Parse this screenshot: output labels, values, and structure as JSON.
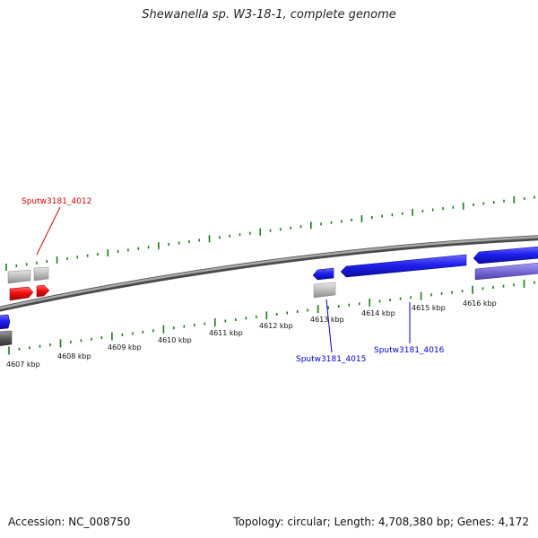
{
  "title": "Shewanella sp. W3-18-1, complete genome",
  "footer": {
    "accession": "Accession: NC_008750",
    "summary": "Topology: circular; Length: 4,708,380 bp; Genes: 4,172"
  },
  "scale": {
    "unit": "kbp",
    "labels": [
      "4607 kbp",
      "4608 kbp",
      "4609 kbp",
      "4610 kbp",
      "4611 kbp",
      "4612 kbp",
      "4613 kbp",
      "4614 kbp",
      "4615 kbp",
      "4616 kbp"
    ]
  },
  "genes": [
    {
      "label": "Sputw3181_4012",
      "color": "#d40000"
    },
    {
      "label": "Sputw3181_4015",
      "color": "#0000cc"
    },
    {
      "label": "Sputw3181_4016",
      "color": "#0000cc"
    }
  ],
  "colors": {
    "backbone": "#808080",
    "tick": "#1a7a1a",
    "forward_gene": "#1f1fe0",
    "reverse_gene": "#ee1111",
    "rna": "#7b6fd6",
    "pseudo": "#b8b8b8"
  }
}
